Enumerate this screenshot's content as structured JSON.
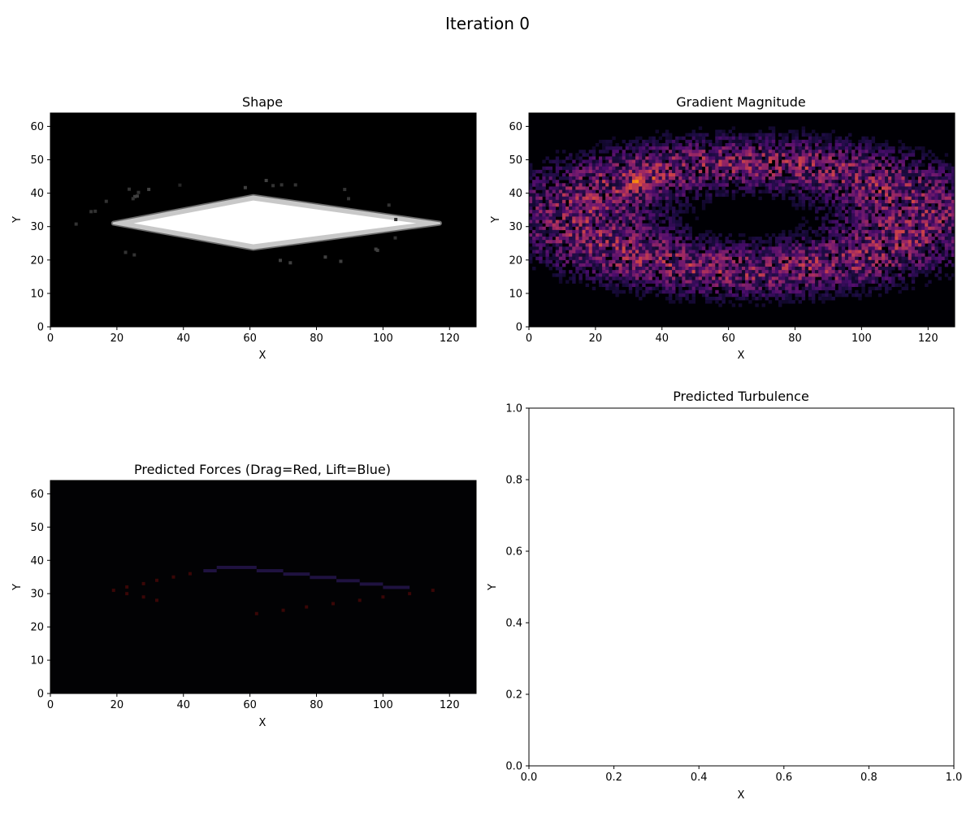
{
  "figure": {
    "title": "Iteration 0"
  },
  "chart_data": [
    {
      "id": "shape",
      "type": "heatmap",
      "title": "Shape",
      "xlabel": "X",
      "ylabel": "Y",
      "xlim": [
        0,
        128
      ],
      "ylim": [
        64,
        0
      ],
      "xticks": [
        0,
        20,
        40,
        60,
        80,
        100,
        120
      ],
      "yticks": [
        0,
        10,
        20,
        30,
        40,
        50,
        60
      ],
      "colormap": "gray",
      "background": "#000000",
      "shape": {
        "kind": "diamond",
        "x_left": 19,
        "x_right": 117,
        "x_peak": 61,
        "y_center": 31,
        "y_top": 23.5,
        "y_bottom": 39
      },
      "speckles": [
        [
          34,
          70,
          0.2
        ],
        [
          36,
          61,
          0.25
        ],
        [
          43,
          83,
          0.25
        ],
        [
          60,
          76,
          0.2
        ],
        [
          95,
          32,
          0.25
        ],
        [
          103,
          78,
          0.2
        ],
        [
          103,
          46,
          0.25
        ],
        [
          103,
          98,
          0.2
        ],
        [
          99,
          59,
          0.25
        ],
        [
          112,
          53,
          0.2
        ],
        [
          112,
          24,
          0.2
        ],
        [
          112,
          71,
          0.25
        ],
        [
          115,
          36,
          0.25
        ],
        [
          141,
          23,
          0.25
        ],
        [
          151,
          25,
          0.2
        ],
        [
          159,
          20,
          0.25
        ],
        [
          175,
          25,
          0.2
        ],
        [
          179,
          18,
          0.2
        ],
        [
          185,
          42,
          0.2
        ],
        [
          23,
          77,
          0.2
        ],
        [
          28,
          79,
          0.2
        ],
        [
          38,
          71,
          0.15
        ],
        [
          40,
          32,
          0.2
        ],
        [
          46,
          43,
          0.2
        ],
        [
          46,
          66,
          0.2
        ],
        [
          43,
          94,
          0.2
        ],
        [
          41,
          105,
          0.2
        ],
        [
          46,
          44,
          0.25
        ],
        [
          45,
          55,
          0.25
        ]
      ]
    },
    {
      "id": "gradient",
      "type": "heatmap",
      "title": "Gradient Magnitude",
      "xlabel": "X",
      "ylabel": "Y",
      "xlim": [
        0,
        128
      ],
      "ylim": [
        64,
        0
      ],
      "xticks": [
        0,
        20,
        40,
        60,
        80,
        100,
        120
      ],
      "yticks": [
        0,
        10,
        20,
        30,
        40,
        50,
        60
      ],
      "colormap": "inferno",
      "background": "#000004",
      "ring": {
        "center_x": 66,
        "center_y": 31,
        "radius_x": 50,
        "radius_y": 16,
        "thickness": 5.5
      },
      "hotspots": [
        {
          "x": 32,
          "y": 21,
          "value": 0.95
        },
        {
          "x": 38,
          "y": 19,
          "value": 0.75
        },
        {
          "x": 28,
          "y": 23,
          "value": 0.7
        },
        {
          "x": 66,
          "y": 14,
          "value": 0.6
        },
        {
          "x": 82,
          "y": 15,
          "value": 0.6
        },
        {
          "x": 58,
          "y": 44,
          "value": 0.55
        },
        {
          "x": 40,
          "y": 39,
          "value": 0.5
        },
        {
          "x": 108,
          "y": 19,
          "value": 0.5
        },
        {
          "x": 82,
          "y": 44,
          "value": 0.45
        }
      ]
    },
    {
      "id": "forces",
      "type": "heatmap",
      "title": "Predicted Forces (Drag=Red, Lift=Blue)",
      "xlabel": "X",
      "ylabel": "Y",
      "xlim": [
        0,
        128
      ],
      "ylim": [
        64,
        0
      ],
      "xticks": [
        0,
        20,
        40,
        60,
        80,
        100,
        120
      ],
      "yticks": [
        0,
        10,
        20,
        30,
        40,
        50,
        60
      ],
      "background": "#020204",
      "drag_color": "#3a0606",
      "lift_color": "#1f1240",
      "drag_points": [
        [
          19,
          31
        ],
        [
          23,
          30
        ],
        [
          23,
          32
        ],
        [
          28,
          29
        ],
        [
          28,
          33
        ],
        [
          32,
          28
        ],
        [
          32,
          34
        ],
        [
          37,
          35
        ],
        [
          42,
          36
        ],
        [
          62,
          24
        ],
        [
          70,
          25
        ],
        [
          77,
          26
        ],
        [
          85,
          27
        ],
        [
          93,
          28
        ],
        [
          100,
          29
        ],
        [
          108,
          30
        ],
        [
          115,
          31
        ]
      ],
      "lift_segments": [
        [
          46,
          50,
          37
        ],
        [
          50,
          62,
          38
        ],
        [
          62,
          70,
          37
        ],
        [
          70,
          78,
          36
        ],
        [
          78,
          86,
          35
        ],
        [
          86,
          93,
          34
        ],
        [
          93,
          100,
          33
        ],
        [
          100,
          108,
          32
        ]
      ]
    },
    {
      "id": "turbulence",
      "type": "scatter",
      "title": "Predicted Turbulence",
      "xlabel": "X",
      "ylabel": "Y",
      "xlim": [
        0,
        1
      ],
      "ylim": [
        0,
        1
      ],
      "xticks": [
        "0.0",
        "0.2",
        "0.4",
        "0.6",
        "0.8",
        "1.0"
      ],
      "yticks": [
        "0.0",
        "0.2",
        "0.4",
        "0.6",
        "0.8",
        "1.0"
      ],
      "points": []
    }
  ]
}
